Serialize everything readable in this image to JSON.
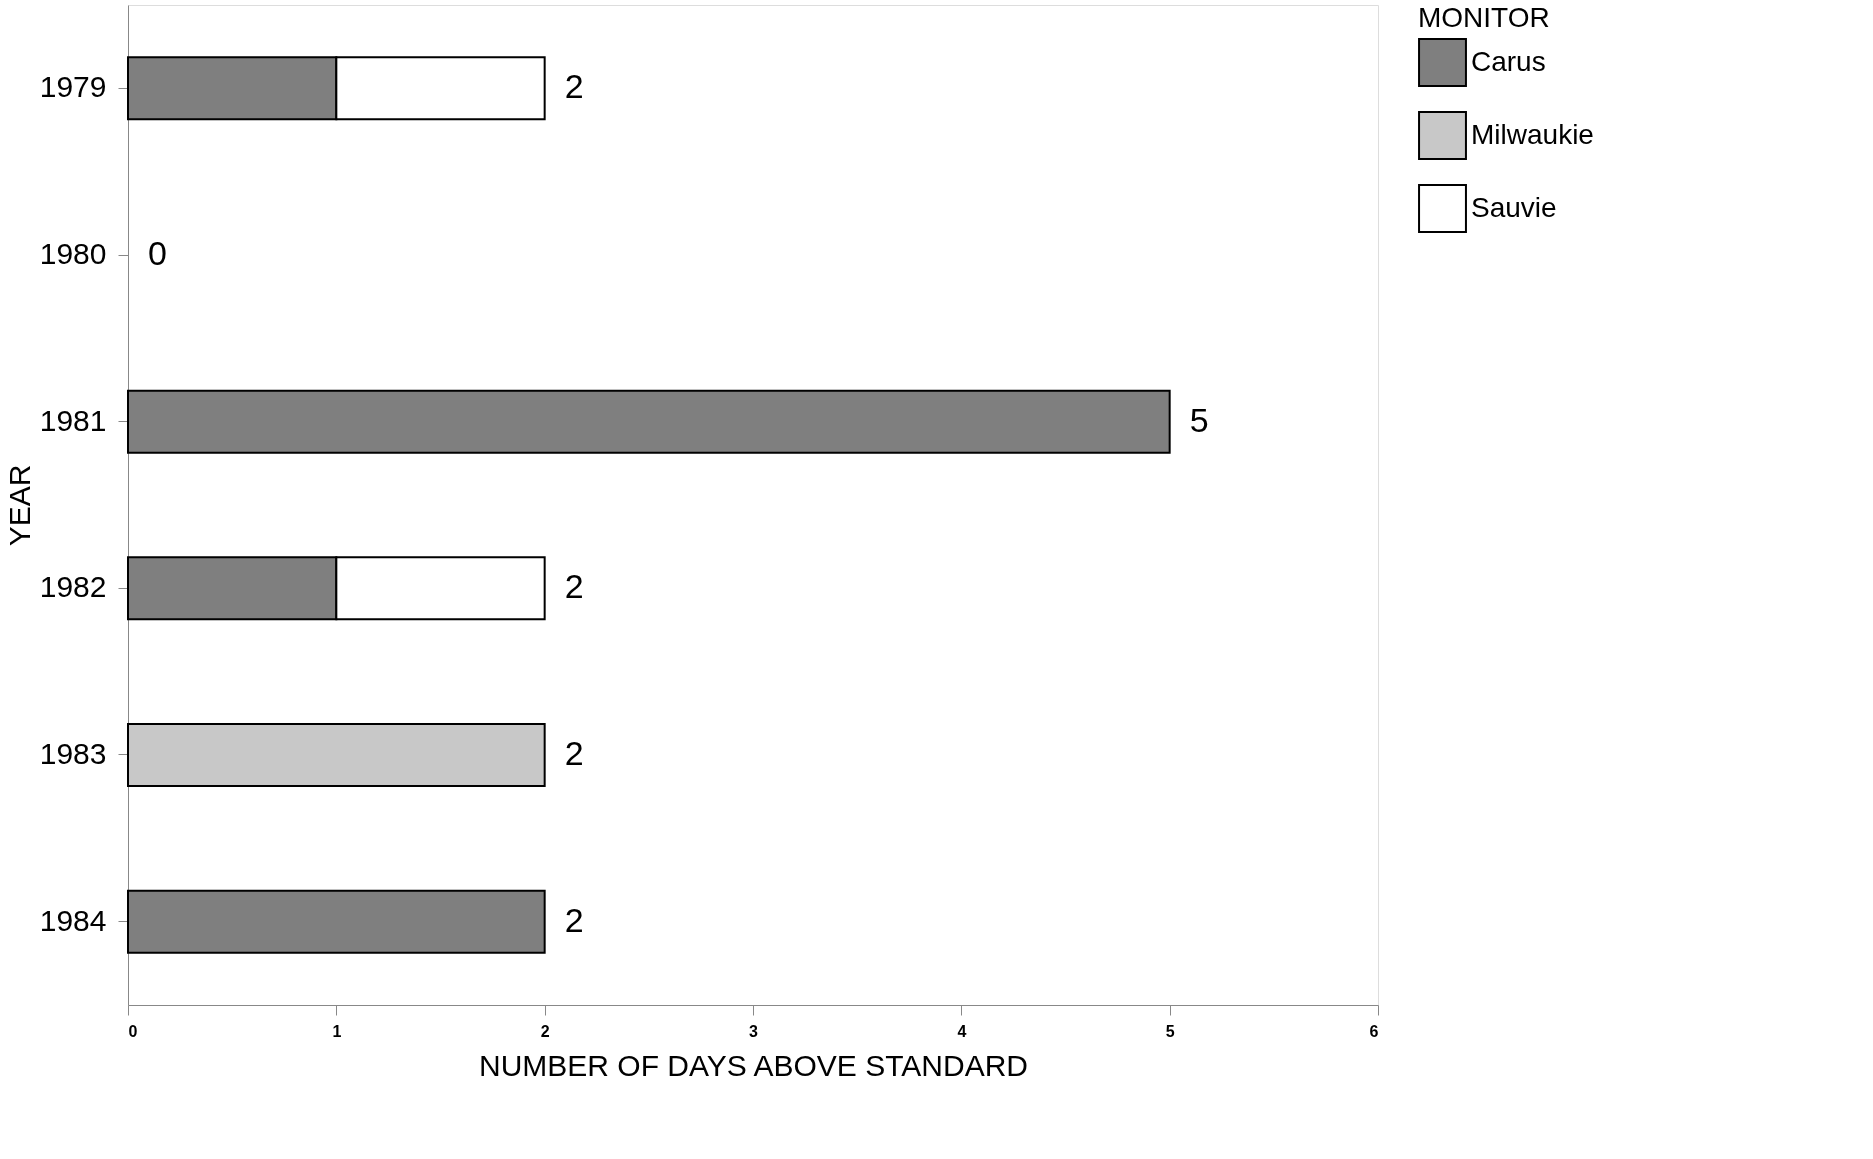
{
  "chart_data": {
    "type": "bar",
    "orientation": "horizontal",
    "stacked": true,
    "xlabel": "NUMBER OF DAYS ABOVE STANDARD",
    "ylabel": "YEAR",
    "legend_title": "MONITOR",
    "categories": [
      "1979",
      "1980",
      "1981",
      "1982",
      "1983",
      "1984"
    ],
    "series": [
      {
        "name": "Carus",
        "color": "#7f7f7f",
        "values": [
          1,
          null,
          5,
          1,
          null,
          2
        ]
      },
      {
        "name": "Milwaukie",
        "color": "#c8c8c8",
        "values": [
          null,
          null,
          null,
          null,
          2,
          null
        ]
      },
      {
        "name": "Sauvie",
        "color": "#ffffff",
        "values": [
          1,
          null,
          null,
          1,
          null,
          null
        ]
      }
    ],
    "totals": [
      "2",
      "0",
      "5",
      "2",
      "2",
      "2"
    ],
    "xlim": [
      0,
      6
    ],
    "xticks": [
      0,
      1,
      2,
      3,
      4,
      5,
      6
    ],
    "grid": false,
    "legend": "top right"
  }
}
